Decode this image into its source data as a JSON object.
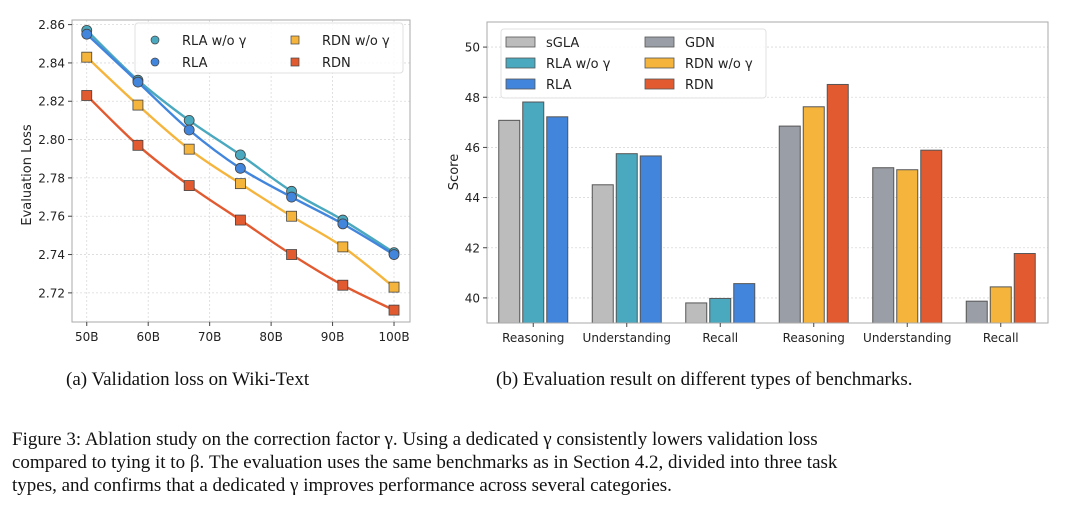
{
  "chart_data": [
    {
      "type": "line",
      "id": "a",
      "title": "",
      "xlabel": "",
      "ylabel": "Evaluation Loss",
      "x": [
        50,
        58.33,
        66.67,
        75,
        83.33,
        91.67,
        100
      ],
      "x_ticks": [
        50,
        60,
        70,
        80,
        90,
        100
      ],
      "x_tick_labels": [
        "50B",
        "60B",
        "70B",
        "80B",
        "90B",
        "100B"
      ],
      "y_ticks": [
        2.72,
        2.74,
        2.76,
        2.78,
        2.8,
        2.82,
        2.84,
        2.86
      ],
      "y_tick_labels": [
        "2.72",
        "2.74",
        "2.76",
        "2.78",
        "2.80",
        "2.82",
        "2.84",
        "2.86"
      ],
      "xlim": [
        47.6,
        102.6
      ],
      "ylim": [
        2.7048,
        2.8624
      ],
      "grid": true,
      "legend_position": "top-right",
      "legend_columns": 2,
      "series": [
        {
          "name": "RLA w/o γ",
          "marker": "circle",
          "color": "#4aa8bf",
          "values": [
            2.857,
            2.831,
            2.81,
            2.792,
            2.773,
            2.758,
            2.741
          ]
        },
        {
          "name": "RLA",
          "marker": "circle",
          "color": "#4285dd",
          "values": [
            2.855,
            2.83,
            2.805,
            2.785,
            2.77,
            2.756,
            2.74
          ]
        },
        {
          "name": "RDN w/o γ",
          "marker": "square",
          "color": "#f5b53d",
          "values": [
            2.843,
            2.818,
            2.795,
            2.777,
            2.76,
            2.744,
            2.723
          ]
        },
        {
          "name": "RDN",
          "marker": "square",
          "color": "#e25a30",
          "values": [
            2.823,
            2.797,
            2.776,
            2.758,
            2.74,
            2.724,
            2.711
          ]
        }
      ]
    },
    {
      "type": "bar",
      "id": "b",
      "title": "",
      "xlabel": "",
      "ylabel": "Score",
      "categories": [
        "Reasoning",
        "Understanding",
        "Recall",
        "Reasoning",
        "Understanding",
        "Recall"
      ],
      "y_ticks": [
        40,
        42,
        44,
        46,
        48,
        50
      ],
      "y_tick_labels": [
        "40",
        "42",
        "44",
        "46",
        "48",
        "50"
      ],
      "ylim": [
        39,
        51
      ],
      "grid": true,
      "legend_position": "top-left",
      "legend_columns": 2,
      "legend_order": [
        "sGLA",
        "RLA w/o γ",
        "RLA",
        "GDN",
        "RDN w/o γ",
        "RDN"
      ],
      "groups": [
        {
          "category_indices": [
            0,
            1,
            2
          ],
          "series": [
            {
              "name": "sGLA",
              "color": "#bcbcbc",
              "values": [
                47.08,
                44.51,
                39.8
              ]
            },
            {
              "name": "RLA w/o γ",
              "color": "#4aa8bf",
              "values": [
                47.81,
                45.75,
                39.98
              ]
            },
            {
              "name": "RLA",
              "color": "#4285dd",
              "values": [
                47.22,
                45.66,
                40.57
              ]
            }
          ]
        },
        {
          "category_indices": [
            3,
            4,
            5
          ],
          "series": [
            {
              "name": "GDN",
              "color": "#9a9ea6",
              "values": [
                46.85,
                45.19,
                39.87
              ]
            },
            {
              "name": "RDN w/o γ",
              "color": "#f5b53d",
              "values": [
                47.62,
                45.11,
                40.44
              ]
            },
            {
              "name": "RDN",
              "color": "#e25a30",
              "values": [
                48.51,
                45.89,
                41.77
              ]
            }
          ]
        }
      ]
    }
  ],
  "subcaptions": {
    "a": "(a) Validation loss on Wiki-Text",
    "b": "(b) Evaluation result on different types of benchmarks."
  },
  "caption": {
    "line1": "Figure 3:  Ablation study on the correction factor γ.  Using a dedicated γ consistently lowers validation loss",
    "line2": "compared to tying it to β. The evaluation uses the same benchmarks as in Section 4.2, divided into three task",
    "line3": "types, and confirms that a dedicated γ improves performance across several categories."
  }
}
